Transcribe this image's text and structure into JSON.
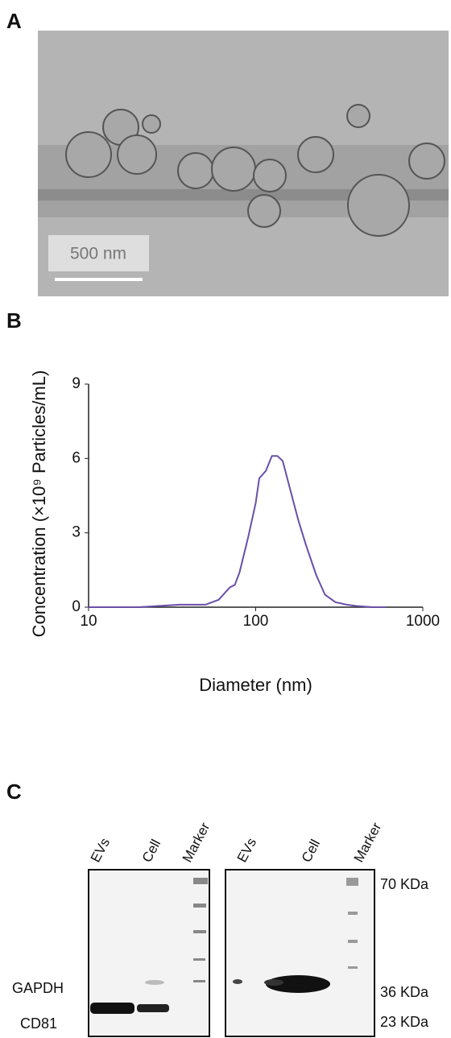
{
  "panel_a": {
    "label": "A",
    "scale_bar": "500 nm"
  },
  "panel_b": {
    "label": "B"
  },
  "chart_data": {
    "type": "line",
    "xlabel": "Diameter (nm)",
    "ylabel": "Concentration (×10⁹ Particles/mL)",
    "xscale": "log",
    "xlim": [
      10,
      1000
    ],
    "xticks": [
      10,
      100,
      1000
    ],
    "ylim": [
      0,
      9
    ],
    "yticks": [
      0,
      3,
      6,
      9
    ],
    "color": "#6a4fa8",
    "x": [
      10,
      20,
      35,
      50,
      60,
      70,
      75,
      80,
      90,
      100,
      105,
      115,
      125,
      135,
      145,
      160,
      180,
      200,
      230,
      260,
      300,
      350,
      400,
      500,
      600
    ],
    "values": [
      0,
      0,
      0.1,
      0.1,
      0.3,
      0.8,
      0.9,
      1.4,
      2.8,
      4.2,
      5.2,
      5.5,
      6.1,
      6.1,
      5.9,
      4.8,
      3.5,
      2.5,
      1.3,
      0.5,
      0.2,
      0.1,
      0.05,
      0,
      0
    ]
  },
  "panel_c": {
    "label": "C",
    "left_blot": {
      "lanes": [
        "EVs",
        "Cell",
        "Marker"
      ],
      "rows": [
        "GAPDH",
        "CD81"
      ]
    },
    "right_blot": {
      "lanes": [
        "EVs",
        "Cell",
        "Marker"
      ],
      "markers": [
        "70 KDa",
        "36 KDa",
        "23 KDa"
      ]
    }
  }
}
